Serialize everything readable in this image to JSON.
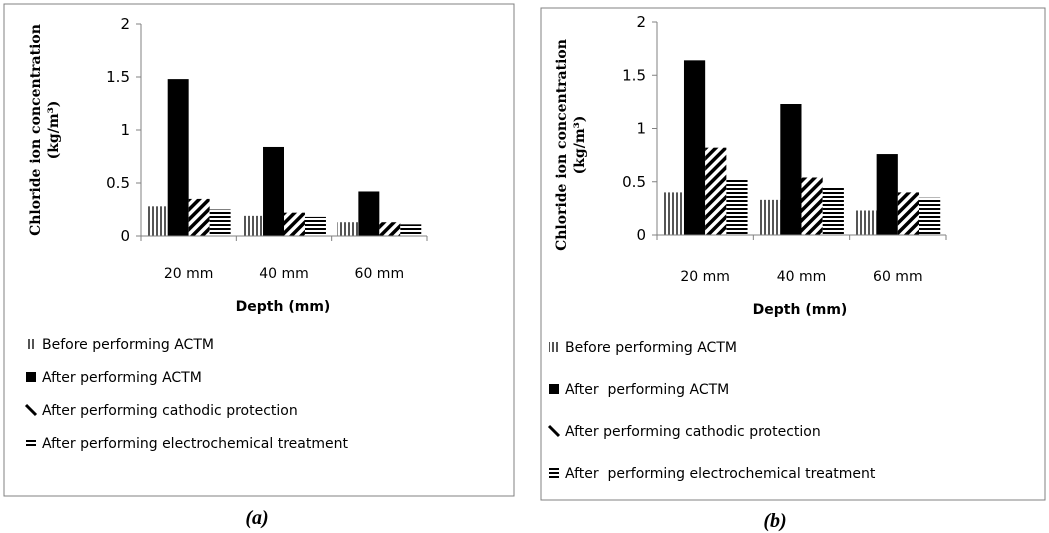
{
  "chart_data": [
    {
      "type": "bar",
      "caption": "(a)",
      "categories": [
        "20 mm",
        "40 mm",
        "60 mm"
      ],
      "xlabel": "Depth (mm)",
      "ylabel_line1": "Chloride ion concentration",
      "ylabel_line2": "(kg/m³)",
      "ylim": [
        0,
        2
      ],
      "yticks": [
        "0",
        "0.5",
        "1",
        "1.5",
        "2"
      ],
      "grid": false,
      "legend_position": "bottom",
      "series": [
        {
          "name": "Before performing ACTM",
          "values": [
            0.28,
            0.19,
            0.13
          ],
          "pattern": "vertical"
        },
        {
          "name": "After performing ACTM",
          "values": [
            1.48,
            0.84,
            0.42
          ],
          "pattern": "solid"
        },
        {
          "name": "After performing cathodic protection",
          "values": [
            0.35,
            0.22,
            0.13
          ],
          "pattern": "diagonal"
        },
        {
          "name": "After performing electrochemical treatment",
          "values": [
            0.25,
            0.18,
            0.11
          ],
          "pattern": "horizontal"
        }
      ]
    },
    {
      "type": "bar",
      "caption": "(b)",
      "categories": [
        "20 mm",
        "40 mm",
        "60 mm"
      ],
      "xlabel": "Depth (mm)",
      "ylabel_line1": "Chloride ion concentration",
      "ylabel_line2": "(kg/m³)",
      "ylim": [
        0,
        2
      ],
      "yticks": [
        "0",
        "0.5",
        "1",
        "1.5",
        "2"
      ],
      "grid": false,
      "legend_position": "bottom",
      "series": [
        {
          "name": "Before performing ACTM",
          "values": [
            0.4,
            0.33,
            0.23
          ],
          "pattern": "vertical"
        },
        {
          "name": "After  performing ACTM",
          "values": [
            1.64,
            1.23,
            0.76
          ],
          "pattern": "solid"
        },
        {
          "name": "After performing cathodic protection",
          "values": [
            0.82,
            0.54,
            0.4
          ],
          "pattern": "diagonal"
        },
        {
          "name": "After  performing electrochemical treatment",
          "values": [
            0.52,
            0.46,
            0.35
          ],
          "pattern": "horizontal"
        }
      ]
    }
  ]
}
